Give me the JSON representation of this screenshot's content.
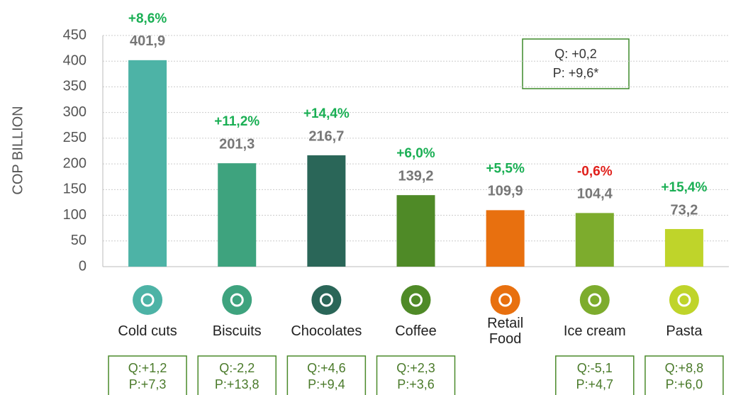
{
  "chart_data": {
    "type": "bar",
    "y_label": "COP BILLION",
    "categories": [
      "Cold cuts",
      "Biscuits",
      "Chocolates",
      "Coffee",
      "Retail\nFood",
      "Ice cream",
      "Pasta"
    ],
    "values": [
      401.9,
      201.3,
      216.7,
      139.2,
      109.9,
      104.4,
      73.2
    ],
    "value_labels": [
      "401,9",
      "201,3",
      "216,7",
      "139,2",
      "109,9",
      "104,4",
      "73,2"
    ],
    "colors": [
      "#4db3a6",
      "#3ea37e",
      "#2a6658",
      "#4f8a27",
      "#e8700f",
      "#7dac2d",
      "#bfd42a"
    ],
    "growth": [
      "+8,6%",
      "+11,2%",
      "+14,4%",
      "+6,0%",
      "+5,5%",
      "-0,6%",
      "+15,4%"
    ],
    "growth_colors": [
      "#1aaf54",
      "#1aaf54",
      "#1aaf54",
      "#1aaf54",
      "#1aaf54",
      "#e0201b",
      "#1aaf54"
    ],
    "qp": [
      {
        "q": "Q:+1,2",
        "p": "P:+7,3"
      },
      {
        "q": "Q:-2,2",
        "p": "P:+13,8"
      },
      {
        "q": "Q:+4,6",
        "p": "P:+9,4"
      },
      {
        "q": "Q:+2,3",
        "p": "P:+3,6"
      },
      null,
      {
        "q": "Q:-5,1",
        "p": "P:+4,7"
      },
      {
        "q": "Q:+8,8",
        "p": "P:+6,0"
      }
    ],
    "total_box": {
      "q": "Q: +0,2",
      "p": "P: +9,6*"
    },
    "ylim": [
      0,
      450
    ],
    "yticks": [
      0,
      50,
      100,
      150,
      200,
      250,
      300,
      350,
      400,
      450
    ],
    "grid": true
  }
}
